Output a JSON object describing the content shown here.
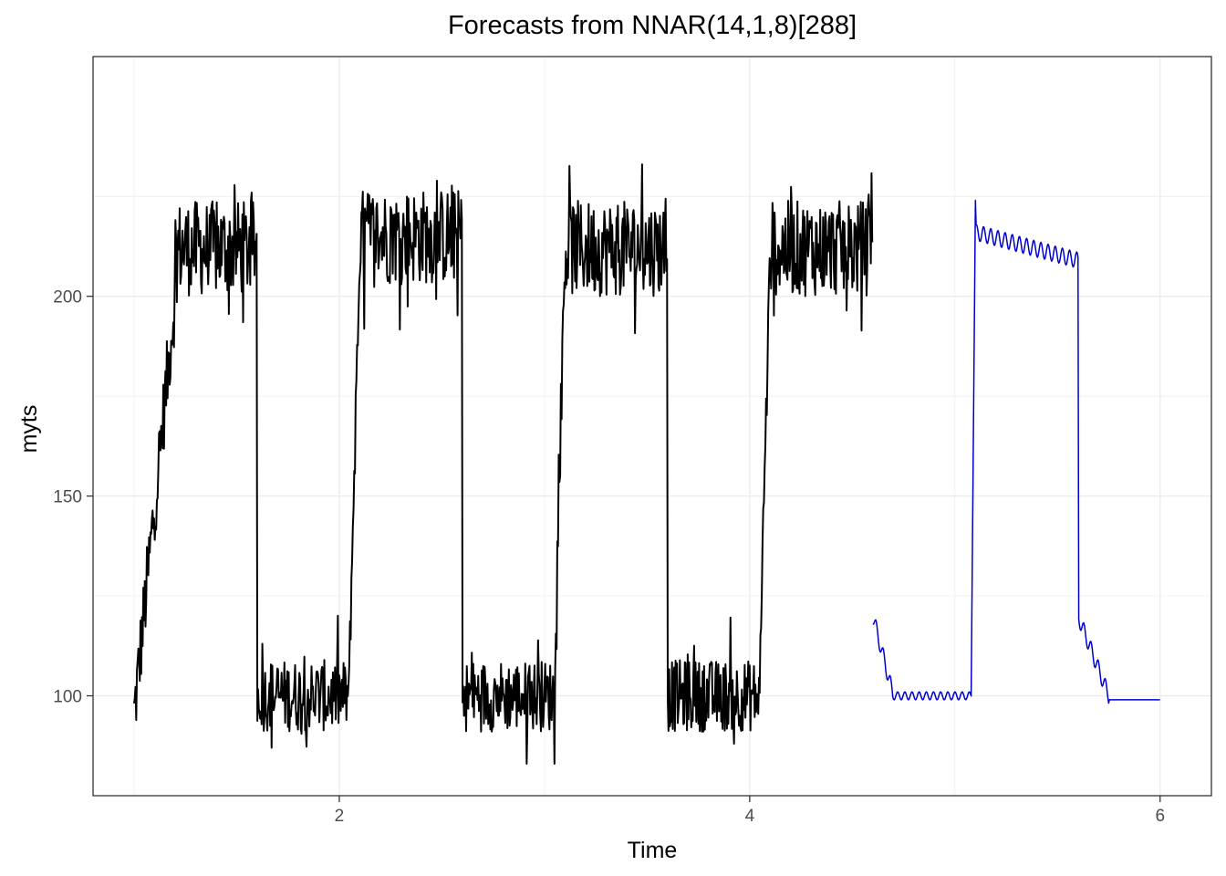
{
  "chart_data": {
    "type": "line",
    "title": "Forecasts from NNAR(14,1,8)[288]",
    "xlabel": "Time",
    "ylabel": "myts",
    "xlim": [
      0.8,
      6.25
    ],
    "ylim": [
      75,
      260
    ],
    "x_ticks": [
      2,
      4,
      6
    ],
    "y_ticks": [
      100,
      150,
      200
    ],
    "grid": true,
    "colors": {
      "history": "#000000",
      "forecast": "#0000cd",
      "grid": "#ebebeb",
      "panel_border": "#333333"
    },
    "series": [
      {
        "name": "history",
        "color": "#000000",
        "description": "Observed series: seasonal (period 288) square-wave pattern, noisy",
        "x_start": 1.0,
        "x_end": 4.6,
        "regimes": [
          {
            "from": 1.0,
            "to": 1.2,
            "start_level": 95,
            "end_level": 200,
            "noise": 10
          },
          {
            "from": 1.2,
            "to": 1.6,
            "level": 212,
            "noise": 12
          },
          {
            "from": 1.6,
            "to": 2.05,
            "level": 100,
            "noise": 9
          },
          {
            "from": 2.05,
            "to": 2.1,
            "start_level": 110,
            "end_level": 210,
            "noise": 8
          },
          {
            "from": 2.1,
            "to": 2.6,
            "level": 215,
            "noise": 12
          },
          {
            "from": 2.6,
            "to": 3.05,
            "level": 100,
            "noise": 9
          },
          {
            "from": 3.05,
            "to": 3.1,
            "start_level": 110,
            "end_level": 210,
            "noise": 8
          },
          {
            "from": 3.1,
            "to": 3.6,
            "level": 212,
            "noise": 12
          },
          {
            "from": 3.6,
            "to": 4.05,
            "level": 100,
            "noise": 9
          },
          {
            "from": 4.05,
            "to": 4.1,
            "start_level": 110,
            "end_level": 210,
            "noise": 8
          },
          {
            "from": 4.1,
            "to": 4.6,
            "level": 212,
            "noise": 12
          }
        ],
        "min": 83,
        "max": 238
      },
      {
        "name": "forecast",
        "color": "#0000cd",
        "description": "NNAR forecast continuing the seasonal pattern",
        "x_start": 4.6,
        "x_end": 6.0,
        "regimes": [
          {
            "from": 4.6,
            "to": 4.7,
            "start_level": 120,
            "end_level": 100,
            "noise": 2
          },
          {
            "from": 4.7,
            "to": 5.08,
            "level": 100,
            "noise": 1
          },
          {
            "from": 5.08,
            "to": 5.1,
            "start_level": 105,
            "end_level": 224,
            "noise": 0
          },
          {
            "from": 5.1,
            "to": 5.6,
            "start_level": 216,
            "end_level": 209,
            "noise": 2
          },
          {
            "from": 5.6,
            "to": 5.75,
            "start_level": 120,
            "end_level": 100,
            "noise": 2
          },
          {
            "from": 5.75,
            "to": 6.0,
            "level": 99,
            "noise": 0
          }
        ],
        "min": 98,
        "max": 225
      }
    ]
  }
}
